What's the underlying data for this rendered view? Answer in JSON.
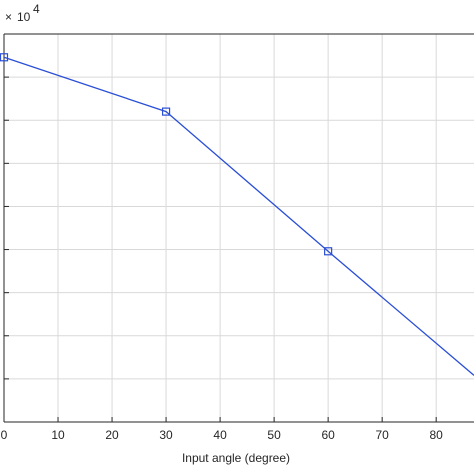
{
  "chart_data": {
    "type": "line",
    "title": "",
    "xlabel": "Input angle (degree)",
    "ylabel": "",
    "exponent_label": "10",
    "exponent_power": "4",
    "exponent_prefix": "×",
    "xlim": [
      0,
      87
    ],
    "x_ticks": [
      0,
      10,
      20,
      30,
      40,
      50,
      60,
      70,
      80
    ],
    "y_gridlines": 9,
    "grid": true,
    "colors": {
      "line": "#2a4fd6",
      "grid": "#d9d9d9",
      "axis": "#262626"
    },
    "series": [
      {
        "x": [
          0,
          30,
          60,
          87
        ],
        "y": [
          0.94,
          0.8,
          0.44,
          0.12
        ],
        "markers": [
          true,
          true,
          true,
          false
        ]
      }
    ]
  }
}
